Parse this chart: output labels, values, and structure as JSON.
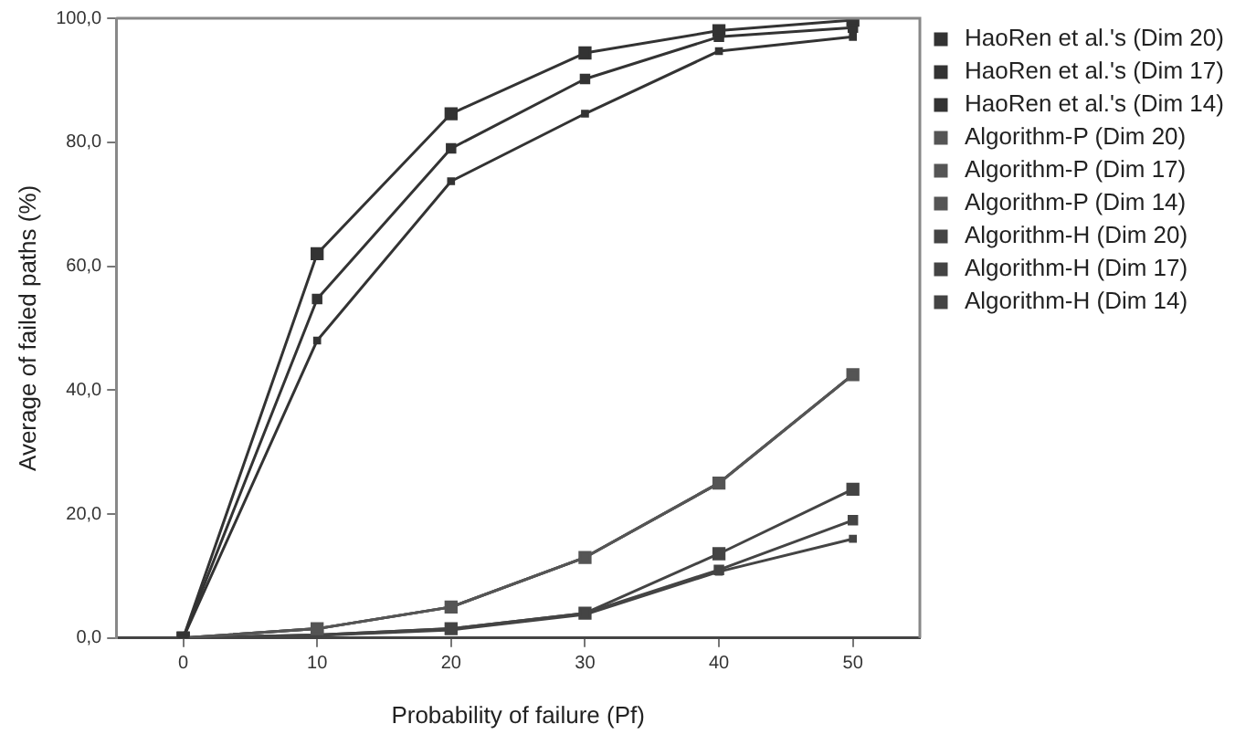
{
  "chart_data": {
    "type": "line",
    "xlabel": "Probability of failure (Pf)",
    "ylabel": "Average of failed paths (%)",
    "x": [
      0,
      10,
      20,
      30,
      40,
      50
    ],
    "xlim": [
      -5,
      55
    ],
    "xticks": [
      0,
      10,
      20,
      30,
      40,
      50
    ],
    "ylim": [
      0,
      100
    ],
    "yticks": [
      {
        "value": 0,
        "label": "0,0"
      },
      {
        "value": 20,
        "label": "20,0"
      },
      {
        "value": 40,
        "label": "40,0"
      },
      {
        "value": 60,
        "label": "60,0"
      },
      {
        "value": 80,
        "label": "80,0"
      },
      {
        "value": 100,
        "label": "100,0"
      }
    ],
    "grid": false,
    "legend": "right",
    "marker": "square",
    "series": [
      {
        "name": "HaoRen et al.'s (Dim 20)",
        "color": "#333333",
        "values": [
          0,
          62,
          84.6,
          94.4,
          98,
          99.7
        ]
      },
      {
        "name": "HaoRen et al.'s (Dim 17)",
        "color": "#333333",
        "values": [
          0,
          54.7,
          79,
          90.2,
          97,
          98.5
        ]
      },
      {
        "name": "HaoRen et al.'s (Dim 14)",
        "color": "#333333",
        "values": [
          0,
          48,
          73.7,
          84.6,
          94.7,
          97
        ]
      },
      {
        "name": "Algorithm-P (Dim 20)",
        "color": "#555555",
        "values": [
          0,
          1.5,
          5,
          13,
          25,
          42.5
        ]
      },
      {
        "name": "Algorithm-P (Dim 17)",
        "color": "#555555",
        "values": [
          0,
          1.5,
          5,
          13,
          25,
          42.5
        ]
      },
      {
        "name": "Algorithm-P (Dim 14)",
        "color": "#555555",
        "values": [
          0,
          1.5,
          5,
          13,
          25,
          42.5
        ]
      },
      {
        "name": "Algorithm-H (Dim 20)",
        "color": "#444444",
        "values": [
          0,
          0.5,
          1.5,
          4,
          13.6,
          24
        ]
      },
      {
        "name": "Algorithm-H (Dim 17)",
        "color": "#444444",
        "values": [
          0,
          0.5,
          1.5,
          4,
          11,
          19
        ]
      },
      {
        "name": "Algorithm-H (Dim 14)",
        "color": "#444444",
        "values": [
          0,
          0.4,
          1.3,
          3.8,
          10.7,
          16
        ]
      }
    ]
  }
}
